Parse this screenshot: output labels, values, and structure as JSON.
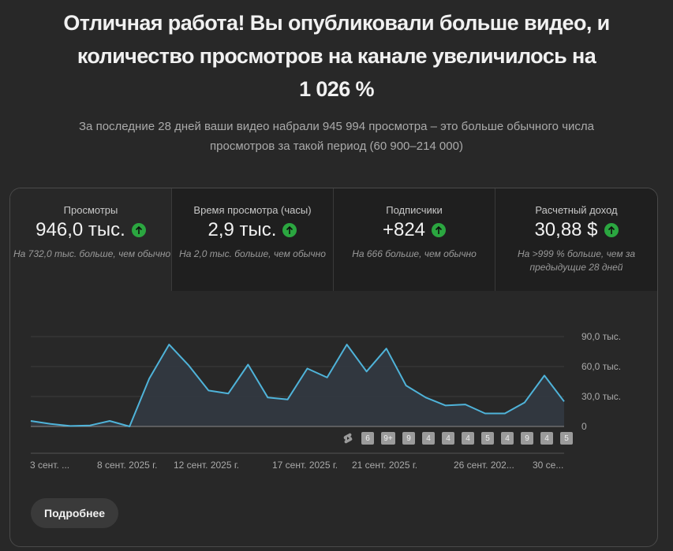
{
  "headline": {
    "line1": "Отличная работа! Вы опубликовали больше видео, и",
    "line2": "количество просмотров на канале увеличилось на",
    "line3": "1 026 %"
  },
  "subtext": {
    "line1": "За последние 28 дней ваши видео набрали 945 994 просмотра – это больше обычного числа",
    "line2": "просмотров за такой период (60 900–214 000)"
  },
  "metrics": [
    {
      "label": "Просмотры",
      "value": "946,0 тыс.",
      "trend": "up",
      "note": "На 732,0 тыс. больше, чем обычно"
    },
    {
      "label": "Время просмотра (часы)",
      "value": "2,9 тыс.",
      "trend": "up",
      "note": "На 2,0 тыс. больше, чем обычно"
    },
    {
      "label": "Подписчики",
      "value": "+824",
      "trend": "up",
      "note": "На 666 больше, чем обычно"
    },
    {
      "label": "Расчетный доход",
      "value": "30,88 $",
      "trend": "up",
      "note": "На >999 % больше, чем за предыдущие 28 дней"
    }
  ],
  "colors": {
    "line": "#4fb3d9",
    "fill": "#323840",
    "up_badge": "#2ba640",
    "background": "#282828"
  },
  "chart_data": {
    "type": "area",
    "title": "",
    "xlabel": "",
    "ylabel": "Просмотры",
    "ylim": [
      0,
      90000
    ],
    "yticks": [
      "0",
      "30,0 тыс.",
      "60,0 тыс.",
      "90,0 тыс."
    ],
    "grid": true,
    "x_tick_labels": [
      "3 сент. ...",
      "8 сент. 2025 г.",
      "12 сент. 2025 г.",
      "17 сент. 2025 г.",
      "21 сент. 2025 г.",
      "26 сент. 202...",
      "30 се..."
    ],
    "x": [
      1,
      2,
      3,
      4,
      5,
      6,
      7,
      8,
      9,
      10,
      11,
      12,
      13,
      14,
      15,
      16,
      17,
      18,
      19,
      20,
      21,
      22,
      23,
      24,
      25,
      26,
      27,
      28
    ],
    "series": [
      {
        "name": "Просмотры",
        "values": [
          5500,
          2500,
          500,
          1000,
          5500,
          0,
          48000,
          82000,
          61000,
          36000,
          33000,
          62000,
          29000,
          27000,
          58000,
          49000,
          82000,
          55000,
          78000,
          41000,
          29000,
          21000,
          22000,
          13000,
          13000,
          24000,
          51000,
          25000
        ]
      }
    ],
    "upload_markers": [
      "shorts",
      "6",
      "9+",
      "9",
      "4",
      "4",
      "4",
      "5",
      "4",
      "9",
      "4",
      "5"
    ]
  },
  "button": {
    "more_label": "Подробнее"
  }
}
